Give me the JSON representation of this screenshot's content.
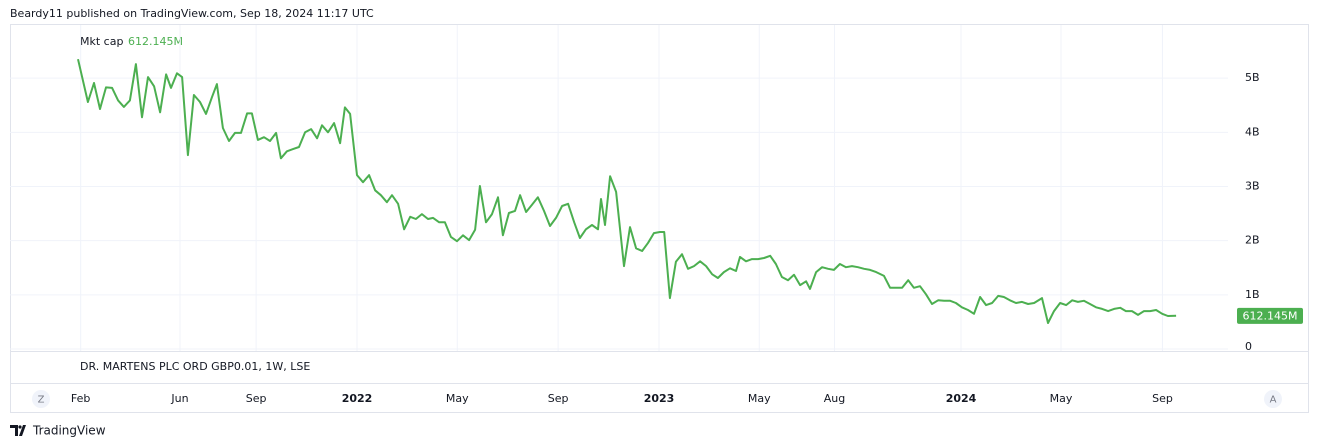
{
  "chart_data": {
    "type": "line",
    "caption": "Beardy11 published on TradingView.com, Sep 18, 2024 11:17 UTC",
    "title": "DR. MARTENS PLC ORD GBP0.01, 1W, LSE",
    "footer": "TradingView",
    "scale_buttons": [
      "Z",
      "A"
    ],
    "grid": true,
    "xlim": [
      2020.851,
      2024.884
    ],
    "xticks": [
      {
        "value": 2021.085,
        "label": "Feb"
      },
      {
        "value": 2021.414,
        "label": "Jun"
      },
      {
        "value": 2021.666,
        "label": "Sep"
      },
      {
        "value": 2022,
        "label": "2022"
      },
      {
        "value": 2022.332,
        "label": "May"
      },
      {
        "value": 2022.666,
        "label": "Sep"
      },
      {
        "value": 2023,
        "label": "2023"
      },
      {
        "value": 2023.332,
        "label": "May"
      },
      {
        "value": 2023.581,
        "label": "Aug"
      },
      {
        "value": 2024,
        "label": "2024"
      },
      {
        "value": 2024.331,
        "label": "May"
      },
      {
        "value": 2024.667,
        "label": "Sep"
      }
    ],
    "ylim": [
      0,
      6
    ],
    "yticks": [
      0,
      {
        "value": 1,
        "label": "1B"
      },
      {
        "value": 2,
        "label": "2B"
      },
      {
        "value": 3,
        "label": "3B"
      },
      {
        "value": 4,
        "label": "4B"
      },
      {
        "value": 5,
        "label": "5B"
      }
    ],
    "x": [
      2021.076,
      2021.109,
      2021.129,
      2021.149,
      2021.169,
      2021.189,
      2021.209,
      2021.228,
      2021.248,
      2021.268,
      2021.288,
      2021.308,
      2021.328,
      2021.348,
      2021.368,
      2021.384,
      2021.404,
      2021.421,
      2021.44,
      2021.46,
      2021.48,
      2021.5,
      2021.52,
      2021.536,
      2021.556,
      2021.576,
      2021.596,
      2021.616,
      2021.636,
      2021.652,
      2021.672,
      2021.692,
      2021.712,
      2021.732,
      2021.748,
      2021.768,
      2021.788,
      2021.808,
      2021.828,
      2021.848,
      2021.868,
      2021.884,
      2021.904,
      2021.924,
      2021.944,
      2021.96,
      2021.977,
      2022,
      2022.02,
      2022.04,
      2022.06,
      2022.079,
      2022.099,
      2022.116,
      2022.136,
      2022.156,
      2022.176,
      2022.195,
      2022.215,
      2022.235,
      2022.252,
      2022.272,
      2022.291,
      2022.311,
      2022.331,
      2022.351,
      2022.371,
      2022.391,
      2022.407,
      2022.427,
      2022.447,
      2022.467,
      2022.483,
      2022.503,
      2022.523,
      2022.54,
      2022.56,
      2022.579,
      2022.599,
      2022.619,
      2022.639,
      2022.659,
      2022.679,
      2022.699,
      2022.719,
      2022.738,
      2022.758,
      2022.778,
      2022.798,
      2022.808,
      2022.821,
      2022.838,
      2022.858,
      2022.884,
      2022.904,
      2022.924,
      2022.944,
      2022.964,
      2022.983,
      2023.003,
      2023.017,
      2023.036,
      2023.056,
      2023.076,
      2023.096,
      2023.116,
      2023.136,
      2023.156,
      2023.176,
      2023.195,
      2023.215,
      2023.235,
      2023.255,
      2023.268,
      2023.288,
      2023.308,
      2023.328,
      2023.348,
      2023.368,
      2023.387,
      2023.407,
      2023.427,
      2023.447,
      2023.467,
      2023.487,
      2023.5,
      2023.52,
      2023.54,
      2023.56,
      2023.579,
      2023.599,
      2023.619,
      2023.639,
      2023.659,
      2023.679,
      2023.699,
      2023.719,
      2023.745,
      2023.765,
      2023.785,
      2023.805,
      2023.825,
      2023.844,
      2023.864,
      2023.884,
      2023.904,
      2023.924,
      2023.944,
      2023.964,
      2023.983,
      2024.003,
      2024.023,
      2024.043,
      2024.063,
      2024.083,
      2024.103,
      2024.123,
      2024.142,
      2024.162,
      2024.182,
      2024.202,
      2024.222,
      2024.242,
      2024.268,
      2024.288,
      2024.308,
      2024.328,
      2024.348,
      2024.368,
      2024.387,
      2024.407,
      2024.427,
      2024.447,
      2024.467,
      2024.487,
      2024.507,
      2024.527,
      2024.546,
      2024.566,
      2024.586,
      2024.606,
      2024.626,
      2024.646,
      2024.666,
      2024.685,
      2024.712
    ],
    "series": [
      {
        "name": "Mkt cap",
        "color": "#4caf50",
        "values": [
          5.35,
          4.56,
          4.91,
          4.43,
          4.83,
          4.82,
          4.59,
          4.47,
          4.59,
          5.26,
          4.28,
          5.02,
          4.85,
          4.37,
          5.07,
          4.82,
          5.09,
          5.02,
          3.58,
          4.69,
          4.56,
          4.34,
          4.65,
          4.89,
          4.08,
          3.84,
          3.99,
          3.99,
          4.35,
          4.35,
          3.86,
          3.91,
          3.84,
          3.99,
          3.52,
          3.65,
          3.69,
          3.73,
          4.0,
          4.06,
          3.89,
          4.13,
          4.0,
          4.17,
          3.8,
          4.46,
          4.34,
          3.21,
          3.08,
          3.21,
          2.93,
          2.84,
          2.71,
          2.84,
          2.68,
          2.21,
          2.44,
          2.4,
          2.49,
          2.4,
          2.42,
          2.34,
          2.34,
          2.07,
          1.99,
          2.1,
          2.01,
          2.2,
          3.01,
          2.34,
          2.49,
          2.8,
          2.1,
          2.51,
          2.55,
          2.84,
          2.53,
          2.66,
          2.8,
          2.55,
          2.27,
          2.42,
          2.64,
          2.68,
          2.34,
          2.05,
          2.21,
          2.29,
          2.21,
          2.77,
          2.29,
          3.19,
          2.9,
          1.53,
          2.25,
          1.86,
          1.81,
          1.96,
          2.14,
          2.16,
          2.16,
          0.94,
          1.61,
          1.75,
          1.48,
          1.53,
          1.62,
          1.53,
          1.38,
          1.31,
          1.42,
          1.49,
          1.44,
          1.7,
          1.62,
          1.66,
          1.66,
          1.68,
          1.72,
          1.57,
          1.33,
          1.27,
          1.37,
          1.18,
          1.25,
          1.11,
          1.42,
          1.51,
          1.48,
          1.46,
          1.57,
          1.51,
          1.53,
          1.51,
          1.48,
          1.46,
          1.42,
          1.35,
          1.13,
          1.13,
          1.13,
          1.27,
          1.13,
          1.16,
          1.01,
          0.83,
          0.9,
          0.89,
          0.89,
          0.85,
          0.77,
          0.72,
          0.65,
          0.96,
          0.81,
          0.85,
          0.98,
          0.96,
          0.9,
          0.85,
          0.87,
          0.83,
          0.85,
          0.94,
          0.48,
          0.7,
          0.85,
          0.81,
          0.9,
          0.87,
          0.89,
          0.83,
          0.77,
          0.74,
          0.7,
          0.74,
          0.76,
          0.7,
          0.7,
          0.63,
          0.7,
          0.7,
          0.72,
          0.65,
          0.61,
          0.612145
        ],
        "last_value": {
          "value": 0.612145,
          "label": "612.145M"
        }
      }
    ]
  }
}
